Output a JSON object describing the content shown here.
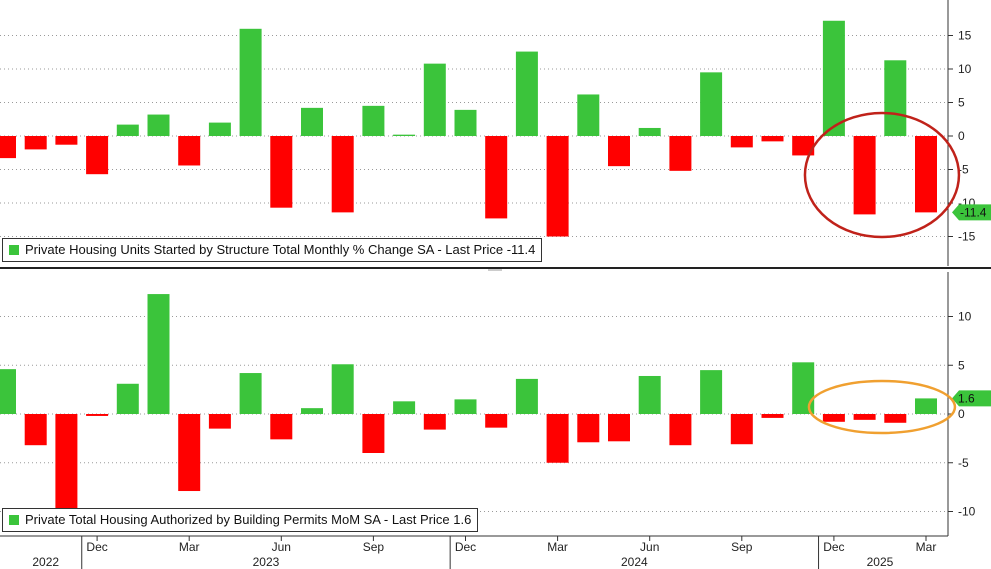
{
  "chart_data": {
    "type": "bar",
    "x_axis": {
      "month_labels": [
        "Dec",
        "Mar",
        "Jun",
        "Sep",
        "Dec",
        "Mar",
        "Jun",
        "Sep",
        "Dec",
        "Mar"
      ],
      "year_labels": [
        "2022",
        "2023",
        "2024",
        "2025"
      ]
    },
    "panels": [
      {
        "name": "Private Housing Units Started by Structure Total Monthly % Change SA - Last Price -11.4",
        "last_price_label": "-11.4",
        "ylim": [
          -19.5,
          20
        ],
        "yticks": [
          15,
          10,
          5,
          0,
          -5,
          -10,
          -15
        ],
        "ytick_labels": [
          "15",
          "10",
          "5",
          "0",
          "-5",
          "-10",
          "-15"
        ],
        "values": [
          -3.3,
          -2.0,
          -1.3,
          -5.7,
          1.7,
          3.2,
          -4.4,
          2.0,
          16.0,
          -10.7,
          4.2,
          -11.4,
          4.5,
          0.2,
          10.8,
          3.9,
          -12.3,
          12.6,
          -15.0,
          6.2,
          -4.5,
          1.2,
          -5.2,
          9.5,
          -1.7,
          -0.8,
          -2.9,
          17.2,
          -11.7,
          11.3,
          -11.4
        ],
        "annotation": {
          "type": "ellipse",
          "color": "#c0221a",
          "x_index_range": [
            26,
            31
          ]
        }
      },
      {
        "name": "Private Total Housing Authorized by Building Permits MoM SA - Last Price 1.6",
        "last_price_label": "1.6",
        "ylim": [
          -12.5,
          14.5
        ],
        "yticks": [
          10,
          5,
          0,
          -5,
          -10
        ],
        "ytick_labels": [
          "10",
          "5",
          "0",
          "-5",
          "-10"
        ],
        "values": [
          4.6,
          -3.2,
          -9.8,
          -0.2,
          3.1,
          12.3,
          -7.9,
          -1.5,
          4.2,
          -2.6,
          0.6,
          5.1,
          -4.0,
          1.3,
          -1.6,
          1.5,
          -1.4,
          3.6,
          -5.0,
          -2.9,
          -2.8,
          3.9,
          -3.2,
          4.5,
          -3.1,
          -0.4,
          5.3,
          -0.8,
          -0.6,
          -0.9,
          1.6
        ],
        "annotation": {
          "type": "ellipse",
          "color": "#f0a030",
          "x_index_range": [
            26,
            31
          ]
        }
      }
    ],
    "colors": {
      "positive": "#3bc43b",
      "negative": "#ff0000"
    },
    "grid": true
  }
}
